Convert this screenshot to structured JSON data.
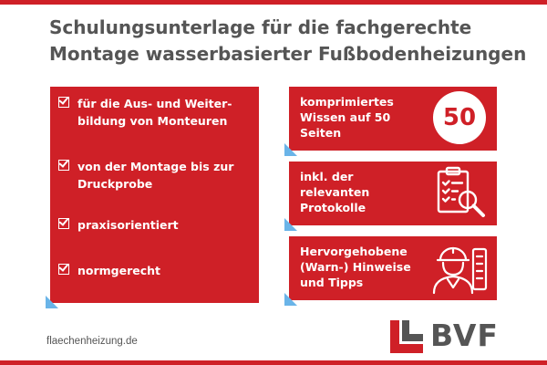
{
  "title": {
    "line1": "Schulungsunterlage für die fachgerechte",
    "line2": "Montage wasserbasierter Fußbodenheizungen"
  },
  "features": [
    {
      "line1": "für die Aus- und Weiter-",
      "line2": "bildung von Monteuren"
    },
    {
      "line1": "von der Montage bis zur",
      "line2": "Druckprobe"
    },
    {
      "line1": "praxisorientiert",
      "line2": ""
    },
    {
      "line1": "normgerecht",
      "line2": ""
    }
  ],
  "highlights": [
    {
      "line1": "komprimiertes",
      "line2": "Wissen auf 50",
      "line3": "Seiten",
      "badge": "50"
    },
    {
      "line1": "inkl. der",
      "line2": "relevanten",
      "line3": "Protokolle",
      "icon": "clipboard-magnifier-icon"
    },
    {
      "line1": "Hervorgehobene",
      "line2": "(Warn-) Hinweise",
      "line3": "und Tipps",
      "icon": "worker-helmet-icon"
    }
  ],
  "footer": {
    "url": "flaechenheizung.de",
    "logo_text": "BVF"
  },
  "colors": {
    "brand_red": "#cf2027",
    "grey": "#555555",
    "fold_blue": "#6ab4e8"
  }
}
